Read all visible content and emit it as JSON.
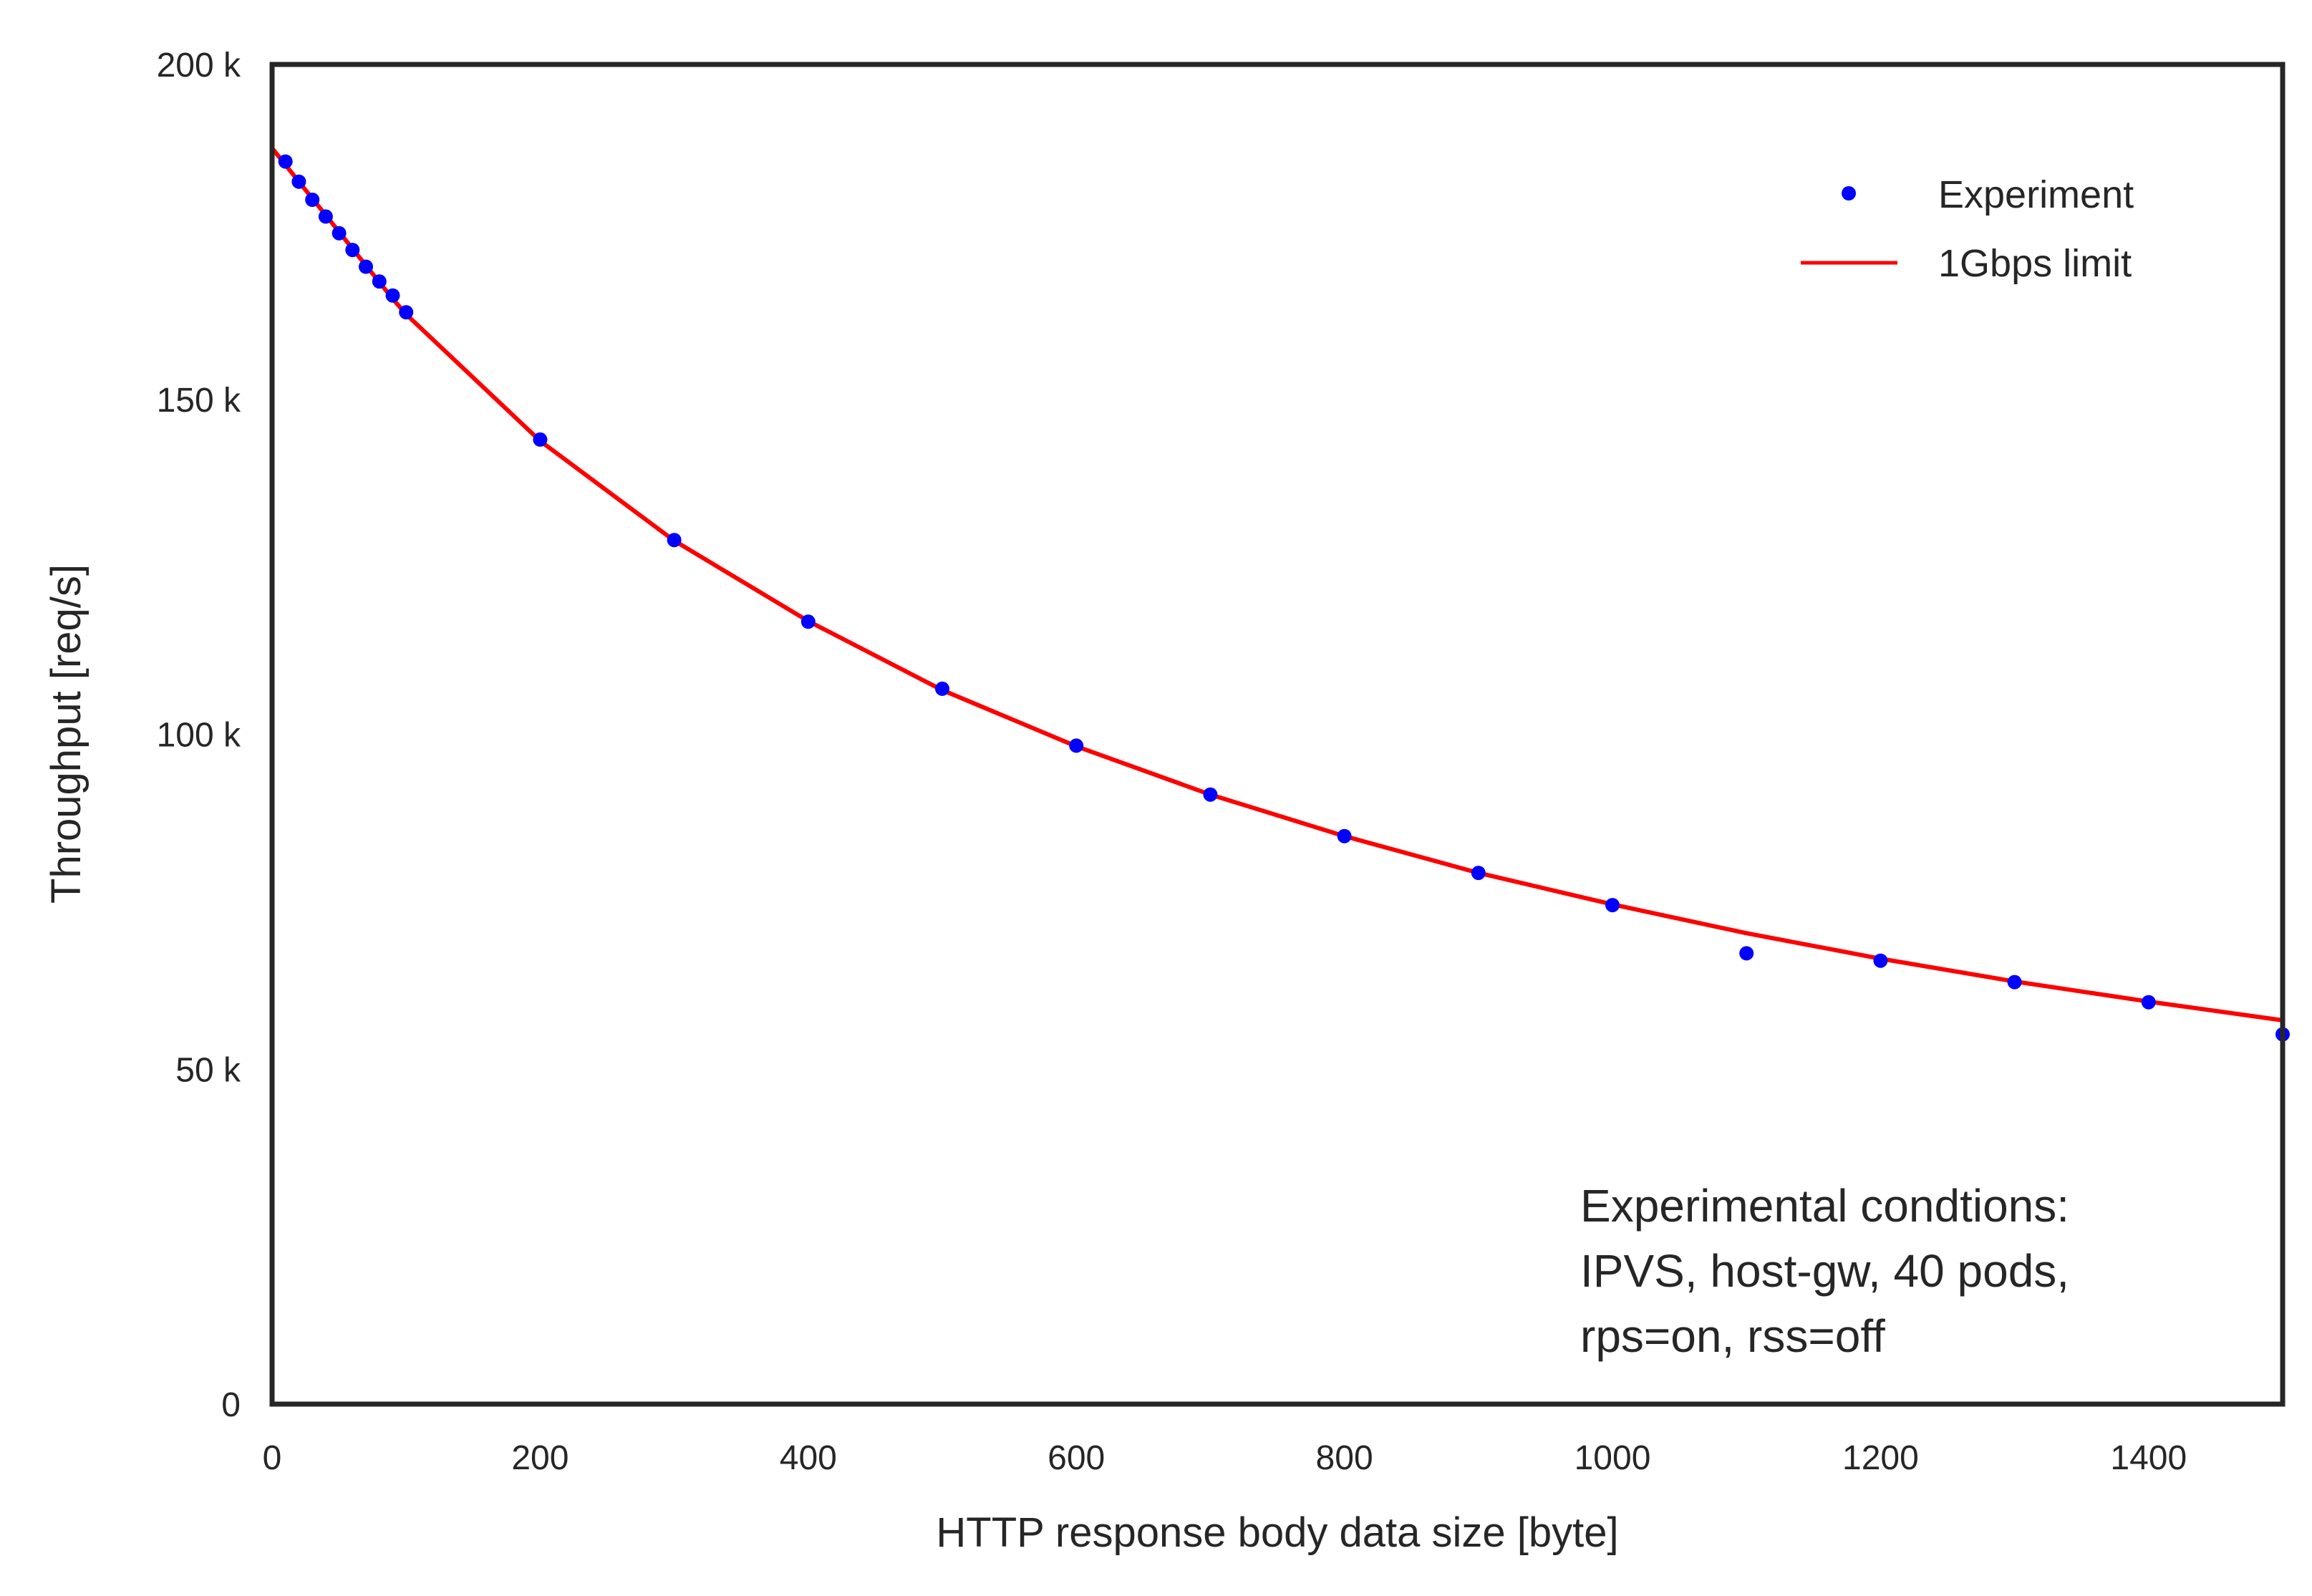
{
  "chart_data": {
    "type": "scatter",
    "xlabel": "HTTP response body data size [byte]",
    "ylabel": "Throughput [req/s]",
    "xlim": [
      0,
      1500
    ],
    "ylim": [
      0,
      200000
    ],
    "x_ticks": [
      0,
      200,
      400,
      600,
      800,
      1000,
      1200,
      1400
    ],
    "x_tick_labels": [
      "0",
      "200",
      "400",
      "600",
      "800",
      "1000",
      "1200",
      "1400"
    ],
    "y_ticks": [
      0,
      50000,
      100000,
      150000,
      200000
    ],
    "y_tick_labels": [
      "0",
      "50 k",
      "100 k",
      "150 k",
      "200 k"
    ],
    "grid": false,
    "legend_position": "top-right",
    "series": [
      {
        "name": "Experiment",
        "style": "markers",
        "color": "#0000ff",
        "x": [
          10,
          20,
          30,
          40,
          50,
          60,
          70,
          80,
          90,
          100,
          200,
          300,
          400,
          500,
          600,
          700,
          800,
          900,
          1000,
          1100,
          1200,
          1300,
          1400,
          1500
        ],
        "y": [
          185500,
          182500,
          179800,
          177300,
          174800,
          172300,
          169800,
          167600,
          165500,
          163000,
          144000,
          129000,
          116800,
          106800,
          98300,
          91000,
          84800,
          79300,
          74500,
          67300,
          66200,
          63000,
          60000,
          55200
        ]
      },
      {
        "name": "1Gbps limit",
        "style": "line",
        "color": "#ff0000",
        "x": [
          0,
          10,
          20,
          30,
          40,
          50,
          60,
          70,
          80,
          90,
          100,
          200,
          300,
          400,
          500,
          600,
          700,
          800,
          900,
          1000,
          1100,
          1200,
          1300,
          1400,
          1500
        ],
        "y": [
          187500,
          185000,
          182500,
          180000,
          177500,
          175000,
          172500,
          170000,
          167500,
          165000,
          162700,
          143800,
          128900,
          116900,
          106600,
          98200,
          91000,
          84800,
          79300,
          74600,
          70300,
          66500,
          63100,
          60100,
          57300
        ]
      }
    ],
    "annotation": {
      "lines": [
        "Experimental condtions:",
        "IPVS, host-gw, 40 pods,",
        "rps=on, rss=off"
      ]
    }
  }
}
